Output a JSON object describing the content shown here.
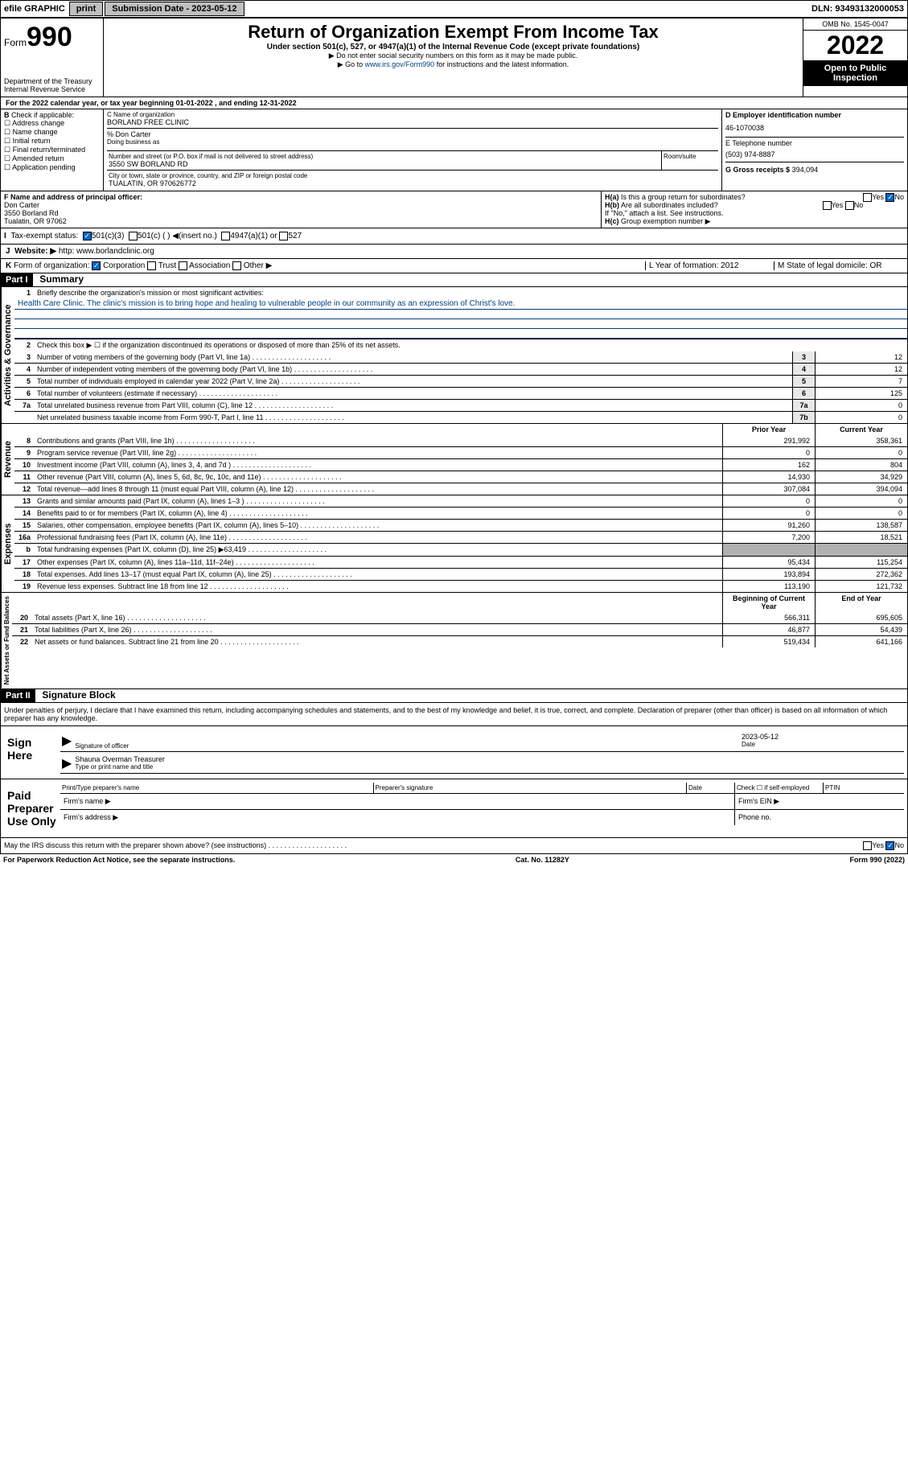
{
  "topbar": {
    "efile": "efile GRAPHIC",
    "print": "print",
    "subdate_label": "Submission Date - 2023-05-12",
    "dln": "DLN: 93493132000053"
  },
  "header": {
    "form_word": "Form",
    "form_num": "990",
    "dept": "Department of the Treasury\nInternal Revenue Service",
    "title": "Return of Organization Exempt From Income Tax",
    "subtitle": "Under section 501(c), 527, or 4947(a)(1) of the Internal Revenue Code (except private foundations)",
    "instr1": "▶ Do not enter social security numbers on this form as it may be made public.",
    "instr2_pre": "▶ Go to ",
    "instr2_link": "www.irs.gov/Form990",
    "instr2_post": " for instructions and the latest information.",
    "omb": "OMB No. 1545-0047",
    "year": "2022",
    "inspect": "Open to Public Inspection"
  },
  "lineA": "For the 2022 calendar year, or tax year beginning 01-01-2022    , and ending 12-31-2022",
  "boxB": {
    "label": "Check if applicable:",
    "items": [
      "Address change",
      "Name change",
      "Initial return",
      "Final return/terminated",
      "Amended return",
      "Application pending"
    ]
  },
  "boxC": {
    "name_label": "C Name of organization",
    "name": "BORLAND FREE CLINIC",
    "care": "% Don Carter",
    "dba_label": "Doing business as",
    "addr_label": "Number and street (or P.O. box if mail is not delivered to street address)",
    "addr": "3550 SW BORLAND RD",
    "room_label": "Room/suite",
    "city_label": "City or town, state or province, country, and ZIP or foreign postal code",
    "city": "TUALATIN, OR  970626772"
  },
  "boxD": {
    "label": "D Employer identification number",
    "val": "46-1070038"
  },
  "boxE": {
    "label": "E Telephone number",
    "val": "(503) 974-8887"
  },
  "boxG": {
    "label": "G Gross receipts $",
    "val": "394,094"
  },
  "boxF": {
    "label": "F Name and address of principal officer:",
    "name": "Don Carter",
    "addr1": "3550 Borland Rd",
    "addr2": "Tualatin, OR  97062"
  },
  "boxH": {
    "a": "Is this a group return for subordinates?",
    "b": "Are all subordinates included?",
    "b2": "If \"No,\" attach a list. See instructions.",
    "c": "Group exemption number ▶"
  },
  "boxI": "Tax-exempt status:",
  "boxJ": {
    "label": "Website: ▶",
    "val": "http: www.borlandclinic.org"
  },
  "boxK": "Form of organization:",
  "boxL": {
    "label": "L Year of formation:",
    "val": "2012"
  },
  "boxM": {
    "label": "M State of legal domicile:",
    "val": "OR"
  },
  "part1": {
    "header": "Part I",
    "title": "Summary",
    "gov_label": "Activities & Governance",
    "rev_label": "Revenue",
    "exp_label": "Expenses",
    "net_label": "Net Assets or Fund Balances",
    "l1": "Briefly describe the organization's mission or most significant activities:",
    "mission": "Health Care Clinic. The clinic's mission is to bring hope and healing to vulnerable people in our community as an expression of Christ's love.",
    "l2": "Check this box ▶ ☐  if the organization discontinued its operations or disposed of more than 25% of its net assets.",
    "lines_gov": [
      {
        "n": "3",
        "d": "Number of voting members of the governing body (Part VI, line 1a)",
        "b": "3",
        "v": "12"
      },
      {
        "n": "4",
        "d": "Number of independent voting members of the governing body (Part VI, line 1b)",
        "b": "4",
        "v": "12"
      },
      {
        "n": "5",
        "d": "Total number of individuals employed in calendar year 2022 (Part V, line 2a)",
        "b": "5",
        "v": "7"
      },
      {
        "n": "6",
        "d": "Total number of volunteers (estimate if necessary)",
        "b": "6",
        "v": "125"
      },
      {
        "n": "7a",
        "d": "Total unrelated business revenue from Part VIII, column (C), line 12",
        "b": "7a",
        "v": "0"
      },
      {
        "n": "",
        "d": "Net unrelated business taxable income from Form 990-T, Part I, line 11",
        "b": "7b",
        "v": "0"
      }
    ],
    "col_prior": "Prior Year",
    "col_current": "Current Year",
    "col_beg": "Beginning of Current Year",
    "col_end": "End of Year",
    "lines_rev": [
      {
        "n": "8",
        "d": "Contributions and grants (Part VIII, line 1h)",
        "p": "291,992",
        "c": "358,361"
      },
      {
        "n": "9",
        "d": "Program service revenue (Part VIII, line 2g)",
        "p": "0",
        "c": "0"
      },
      {
        "n": "10",
        "d": "Investment income (Part VIII, column (A), lines 3, 4, and 7d )",
        "p": "162",
        "c": "804"
      },
      {
        "n": "11",
        "d": "Other revenue (Part VIII, column (A), lines 5, 6d, 8c, 9c, 10c, and 11e)",
        "p": "14,930",
        "c": "34,929"
      },
      {
        "n": "12",
        "d": "Total revenue—add lines 8 through 11 (must equal Part VIII, column (A), line 12)",
        "p": "307,084",
        "c": "394,094"
      }
    ],
    "lines_exp": [
      {
        "n": "13",
        "d": "Grants and similar amounts paid (Part IX, column (A), lines 1–3 )",
        "p": "0",
        "c": "0"
      },
      {
        "n": "14",
        "d": "Benefits paid to or for members (Part IX, column (A), line 4)",
        "p": "0",
        "c": "0"
      },
      {
        "n": "15",
        "d": "Salaries, other compensation, employee benefits (Part IX, column (A), lines 5–10)",
        "p": "91,260",
        "c": "138,587"
      },
      {
        "n": "16a",
        "d": "Professional fundraising fees (Part IX, column (A), line 11e)",
        "p": "7,200",
        "c": "18,521"
      },
      {
        "n": "b",
        "d": "Total fundraising expenses (Part IX, column (D), line 25) ▶63,419",
        "p": "",
        "c": "",
        "grey": true
      },
      {
        "n": "17",
        "d": "Other expenses (Part IX, column (A), lines 11a–11d, 11f–24e)",
        "p": "95,434",
        "c": "115,254"
      },
      {
        "n": "18",
        "d": "Total expenses. Add lines 13–17 (must equal Part IX, column (A), line 25)",
        "p": "193,894",
        "c": "272,362"
      },
      {
        "n": "19",
        "d": "Revenue less expenses. Subtract line 18 from line 12",
        "p": "113,190",
        "c": "121,732"
      }
    ],
    "lines_net": [
      {
        "n": "20",
        "d": "Total assets (Part X, line 16)",
        "p": "566,311",
        "c": "695,605"
      },
      {
        "n": "21",
        "d": "Total liabilities (Part X, line 26)",
        "p": "46,877",
        "c": "54,439"
      },
      {
        "n": "22",
        "d": "Net assets or fund balances. Subtract line 21 from line 20",
        "p": "519,434",
        "c": "641,166"
      }
    ]
  },
  "part2": {
    "header": "Part II",
    "title": "Signature Block",
    "penalty": "Under penalties of perjury, I declare that I have examined this return, including accompanying schedules and statements, and to the best of my knowledge and belief, it is true, correct, and complete. Declaration of preparer (other than officer) is based on all information of which preparer has any knowledge.",
    "sign_here": "Sign Here",
    "sig_officer": "Signature of officer",
    "sig_date": "2023-05-12",
    "sig_date_label": "Date",
    "sig_name": "Shauna Overman Treasurer",
    "sig_name_label": "Type or print name and title",
    "paid": "Paid Preparer Use Only",
    "prep_name_label": "Print/Type preparer's name",
    "prep_sig_label": "Preparer's signature",
    "prep_date_label": "Date",
    "check_self": "Check ☐ if self-employed",
    "ptin": "PTIN",
    "firm_name": "Firm's name  ▶",
    "firm_ein": "Firm's EIN ▶",
    "firm_addr": "Firm's address ▶",
    "phone": "Phone no.",
    "may_irs": "May the IRS discuss this return with the preparer shown above? (see instructions)"
  },
  "footer": {
    "pra": "For Paperwork Reduction Act Notice, see the separate instructions.",
    "cat": "Cat. No. 11282Y",
    "form": "Form 990 (2022)"
  }
}
